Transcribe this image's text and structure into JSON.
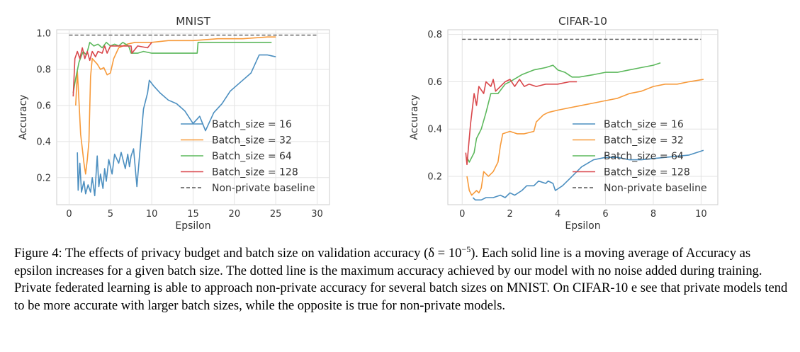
{
  "figure": {
    "caption_prefix": "Figure 4: The effects of privacy budget and batch size on validation accuracy (δ = 10",
    "caption_exponent": "−5",
    "caption_rest": "). Each solid line is a moving average of Accuracy as epsilon increases for a given batch size. The dotted line is the maximum accuracy achieved by our model with no noise added during training. Private federated learning is able to approach non-private accuracy for several batch sizes on MNIST. On CIFAR-10 e see that private models tend to be more accurate with larger batch sizes, while the opposite is true for non-private models."
  },
  "colors": {
    "bs16": "#4c8fc0",
    "bs32": "#f79a3a",
    "bs64": "#5cb85c",
    "bs128": "#d9474b",
    "baseline": "#555555"
  },
  "chart_data": [
    {
      "type": "line",
      "title": "MNIST",
      "xlabel": "Epsilon",
      "ylabel": "Accuracy",
      "xlim": [
        -1.5,
        31.5
      ],
      "ylim": [
        0.05,
        1.02
      ],
      "xticks": [
        0,
        5,
        10,
        15,
        20,
        25,
        30
      ],
      "yticks": [
        0.2,
        0.4,
        0.6,
        0.8,
        1.0
      ],
      "ytick_labels": [
        "0.2",
        "0.4",
        "0.6",
        "0.8",
        "1.0"
      ],
      "grid": true,
      "legend_position": "center-right",
      "series": [
        {
          "name": "Batch_size = 16",
          "color_key": "bs16",
          "points": [
            [
              1.0,
              0.34
            ],
            [
              1.1,
              0.13
            ],
            [
              1.3,
              0.28
            ],
            [
              1.5,
              0.12
            ],
            [
              1.8,
              0.18
            ],
            [
              2.0,
              0.11
            ],
            [
              2.3,
              0.16
            ],
            [
              2.6,
              0.12
            ],
            [
              2.8,
              0.2
            ],
            [
              3.1,
              0.1
            ],
            [
              3.4,
              0.32
            ],
            [
              3.6,
              0.15
            ],
            [
              3.8,
              0.22
            ],
            [
              4.1,
              0.14
            ],
            [
              4.3,
              0.25
            ],
            [
              4.5,
              0.18
            ],
            [
              4.8,
              0.3
            ],
            [
              5.2,
              0.22
            ],
            [
              5.5,
              0.33
            ],
            [
              6.0,
              0.28
            ],
            [
              6.3,
              0.34
            ],
            [
              6.8,
              0.25
            ],
            [
              7.1,
              0.33
            ],
            [
              7.3,
              0.26
            ],
            [
              7.5,
              0.32
            ],
            [
              7.8,
              0.36
            ],
            [
              8.2,
              0.15
            ],
            [
              9.0,
              0.58
            ],
            [
              9.5,
              0.67
            ],
            [
              9.7,
              0.74
            ],
            [
              10.2,
              0.71
            ],
            [
              11.0,
              0.67
            ],
            [
              12.0,
              0.63
            ],
            [
              13.0,
              0.61
            ],
            [
              14.0,
              0.57
            ],
            [
              15.0,
              0.5
            ],
            [
              15.8,
              0.54
            ],
            [
              16.5,
              0.46
            ],
            [
              17.5,
              0.56
            ],
            [
              18.5,
              0.61
            ],
            [
              19.5,
              0.68
            ],
            [
              21.0,
              0.74
            ],
            [
              22.0,
              0.78
            ],
            [
              23.0,
              0.88
            ],
            [
              24.0,
              0.88
            ],
            [
              25.0,
              0.87
            ]
          ]
        },
        {
          "name": "Batch_size = 32",
          "color_key": "bs32",
          "points": [
            [
              0.8,
              0.6
            ],
            [
              1.0,
              0.79
            ],
            [
              1.2,
              0.62
            ],
            [
              1.4,
              0.44
            ],
            [
              1.6,
              0.36
            ],
            [
              1.8,
              0.28
            ],
            [
              2.0,
              0.22
            ],
            [
              2.2,
              0.3
            ],
            [
              2.4,
              0.4
            ],
            [
              2.6,
              0.76
            ],
            [
              2.8,
              0.86
            ],
            [
              3.0,
              0.85
            ],
            [
              3.4,
              0.83
            ],
            [
              3.8,
              0.8
            ],
            [
              4.2,
              0.81
            ],
            [
              4.6,
              0.77
            ],
            [
              5.0,
              0.78
            ],
            [
              5.4,
              0.86
            ],
            [
              6.0,
              0.92
            ],
            [
              7.0,
              0.94
            ],
            [
              8.0,
              0.95
            ],
            [
              10.0,
              0.95
            ],
            [
              12.0,
              0.96
            ],
            [
              15.0,
              0.96
            ],
            [
              18.0,
              0.97
            ],
            [
              21.0,
              0.97
            ],
            [
              24.0,
              0.98
            ],
            [
              25.0,
              0.98
            ]
          ]
        },
        {
          "name": "Batch_size = 64",
          "color_key": "bs64",
          "points": [
            [
              0.5,
              0.67
            ],
            [
              0.8,
              0.75
            ],
            [
              1.2,
              0.84
            ],
            [
              1.7,
              0.9
            ],
            [
              2.1,
              0.88
            ],
            [
              2.5,
              0.95
            ],
            [
              3.0,
              0.93
            ],
            [
              3.5,
              0.94
            ],
            [
              4.0,
              0.92
            ],
            [
              4.5,
              0.95
            ],
            [
              5.0,
              0.93
            ],
            [
              5.5,
              0.94
            ],
            [
              6.0,
              0.93
            ],
            [
              6.5,
              0.95
            ],
            [
              7.2,
              0.93
            ],
            [
              7.5,
              0.89
            ],
            [
              8.3,
              0.89
            ],
            [
              9.0,
              0.9
            ],
            [
              10.0,
              0.89
            ],
            [
              12.0,
              0.89
            ],
            [
              14.0,
              0.89
            ],
            [
              15.5,
              0.89
            ],
            [
              15.6,
              0.95
            ],
            [
              17.0,
              0.95
            ],
            [
              20.0,
              0.95
            ],
            [
              23.0,
              0.95
            ],
            [
              24.5,
              0.95
            ]
          ]
        },
        {
          "name": "Batch_size = 128",
          "color_key": "bs128",
          "points": [
            [
              0.5,
              0.65
            ],
            [
              0.7,
              0.86
            ],
            [
              1.0,
              0.9
            ],
            [
              1.3,
              0.86
            ],
            [
              1.6,
              0.92
            ],
            [
              1.9,
              0.86
            ],
            [
              2.2,
              0.9
            ],
            [
              2.5,
              0.85
            ],
            [
              2.8,
              0.9
            ],
            [
              3.2,
              0.87
            ],
            [
              3.5,
              0.9
            ],
            [
              4.0,
              0.89
            ],
            [
              4.3,
              0.93
            ],
            [
              4.6,
              0.89
            ],
            [
              5.0,
              0.93
            ],
            [
              6.0,
              0.93
            ],
            [
              7.5,
              0.93
            ],
            [
              7.6,
              0.89
            ],
            [
              8.3,
              0.93
            ],
            [
              9.5,
              0.92
            ],
            [
              10.0,
              0.95
            ]
          ]
        },
        {
          "name": "Non-private baseline",
          "color_key": "baseline",
          "dashed": true,
          "points": [
            [
              0,
              0.99
            ],
            [
              30,
              0.99
            ]
          ]
        }
      ]
    },
    {
      "type": "line",
      "title": "CIFAR-10",
      "xlabel": "Epsilon",
      "ylabel": "Accuracy",
      "xlim": [
        -0.6,
        10.7
      ],
      "ylim": [
        0.08,
        0.82
      ],
      "xticks": [
        0,
        2,
        4,
        6,
        8,
        10
      ],
      "yticks": [
        0.2,
        0.4,
        0.6,
        0.8
      ],
      "ytick_labels": [
        "0.2",
        "0.4",
        "0.6",
        "0.8"
      ],
      "grid": true,
      "legend_position": "center-right",
      "series": [
        {
          "name": "Batch_size = 16",
          "color_key": "bs16",
          "points": [
            [
              0.45,
              0.11
            ],
            [
              0.55,
              0.1
            ],
            [
              0.8,
              0.1
            ],
            [
              1.0,
              0.11
            ],
            [
              1.3,
              0.11
            ],
            [
              1.6,
              0.12
            ],
            [
              1.8,
              0.11
            ],
            [
              2.0,
              0.13
            ],
            [
              2.2,
              0.12
            ],
            [
              2.5,
              0.14
            ],
            [
              2.7,
              0.16
            ],
            [
              3.0,
              0.16
            ],
            [
              3.2,
              0.18
            ],
            [
              3.5,
              0.17
            ],
            [
              3.6,
              0.18
            ],
            [
              3.8,
              0.17
            ],
            [
              3.9,
              0.14
            ],
            [
              4.2,
              0.16
            ],
            [
              4.5,
              0.19
            ],
            [
              5.0,
              0.24
            ],
            [
              5.5,
              0.27
            ],
            [
              6.0,
              0.28
            ],
            [
              6.5,
              0.28
            ],
            [
              7.0,
              0.27
            ],
            [
              7.5,
              0.27
            ],
            [
              8.5,
              0.28
            ],
            [
              9.5,
              0.29
            ],
            [
              10.1,
              0.31
            ]
          ]
        },
        {
          "name": "Batch_size = 32",
          "color_key": "bs32",
          "points": [
            [
              0.2,
              0.2
            ],
            [
              0.3,
              0.14
            ],
            [
              0.4,
              0.12
            ],
            [
              0.5,
              0.13
            ],
            [
              0.6,
              0.14
            ],
            [
              0.7,
              0.13
            ],
            [
              0.8,
              0.15
            ],
            [
              0.9,
              0.22
            ],
            [
              1.1,
              0.2
            ],
            [
              1.3,
              0.22
            ],
            [
              1.5,
              0.26
            ],
            [
              1.6,
              0.33
            ],
            [
              1.7,
              0.38
            ],
            [
              2.0,
              0.39
            ],
            [
              2.3,
              0.38
            ],
            [
              2.6,
              0.38
            ],
            [
              3.0,
              0.39
            ],
            [
              3.1,
              0.43
            ],
            [
              3.4,
              0.46
            ],
            [
              3.6,
              0.47
            ],
            [
              4.0,
              0.48
            ],
            [
              4.5,
              0.49
            ],
            [
              5.0,
              0.5
            ],
            [
              5.5,
              0.51
            ],
            [
              6.0,
              0.52
            ],
            [
              6.5,
              0.53
            ],
            [
              7.0,
              0.55
            ],
            [
              7.5,
              0.56
            ],
            [
              8.0,
              0.58
            ],
            [
              8.5,
              0.59
            ],
            [
              9.0,
              0.59
            ],
            [
              9.5,
              0.6
            ],
            [
              10.1,
              0.61
            ]
          ]
        },
        {
          "name": "Batch_size = 64",
          "color_key": "bs64",
          "points": [
            [
              0.2,
              0.28
            ],
            [
              0.3,
              0.26
            ],
            [
              0.5,
              0.3
            ],
            [
              0.6,
              0.36
            ],
            [
              0.8,
              0.4
            ],
            [
              1.0,
              0.47
            ],
            [
              1.2,
              0.55
            ],
            [
              1.5,
              0.55
            ],
            [
              1.8,
              0.59
            ],
            [
              2.0,
              0.6
            ],
            [
              2.5,
              0.63
            ],
            [
              3.0,
              0.65
            ],
            [
              3.5,
              0.66
            ],
            [
              3.8,
              0.67
            ],
            [
              4.0,
              0.65
            ],
            [
              4.3,
              0.64
            ],
            [
              4.6,
              0.62
            ],
            [
              4.9,
              0.62
            ],
            [
              5.5,
              0.63
            ],
            [
              6.0,
              0.64
            ],
            [
              6.5,
              0.64
            ],
            [
              7.0,
              0.65
            ],
            [
              7.5,
              0.66
            ],
            [
              8.0,
              0.67
            ],
            [
              8.3,
              0.68
            ]
          ]
        },
        {
          "name": "Batch_size = 128",
          "color_key": "bs128",
          "points": [
            [
              0.15,
              0.3
            ],
            [
              0.2,
              0.25
            ],
            [
              0.35,
              0.42
            ],
            [
              0.5,
              0.55
            ],
            [
              0.6,
              0.5
            ],
            [
              0.7,
              0.58
            ],
            [
              0.9,
              0.55
            ],
            [
              1.0,
              0.6
            ],
            [
              1.2,
              0.58
            ],
            [
              1.3,
              0.61
            ],
            [
              1.4,
              0.56
            ],
            [
              1.6,
              0.58
            ],
            [
              1.8,
              0.6
            ],
            [
              2.0,
              0.61
            ],
            [
              2.2,
              0.58
            ],
            [
              2.4,
              0.61
            ],
            [
              2.6,
              0.58
            ],
            [
              2.8,
              0.59
            ],
            [
              3.1,
              0.58
            ],
            [
              3.5,
              0.59
            ],
            [
              4.0,
              0.59
            ],
            [
              4.5,
              0.6
            ],
            [
              4.8,
              0.6
            ]
          ]
        },
        {
          "name": "Non-private baseline",
          "color_key": "baseline",
          "dashed": true,
          "points": [
            [
              0,
              0.78
            ],
            [
              10,
              0.78
            ]
          ]
        }
      ]
    }
  ]
}
